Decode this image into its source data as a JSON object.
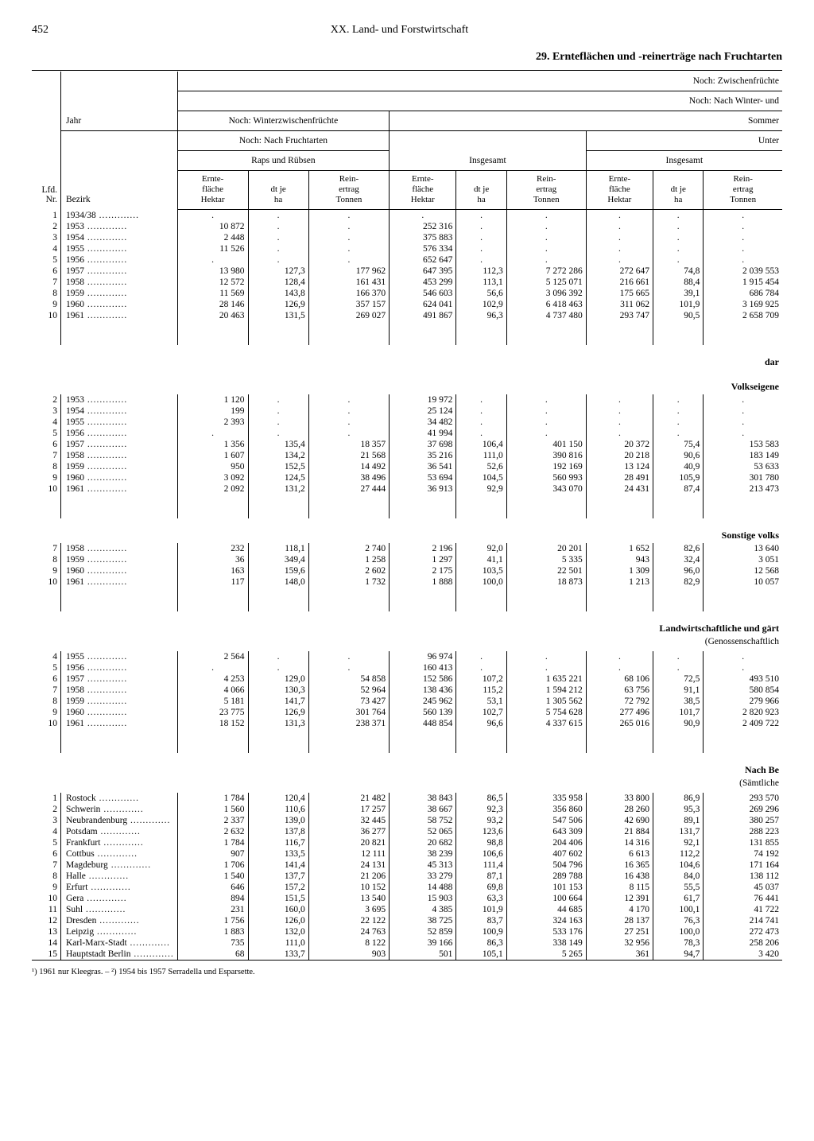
{
  "page_number": "452",
  "chapter": "XX. Land- und Forstwirtschaft",
  "table_title": "29. Ernteflächen und -reinerträge nach Fruchtarten",
  "right_labels": {
    "noch_zwischen": "Noch: Zwischenfrüchte",
    "noch_winter_und": "Noch: Nach Winter- und",
    "sommer": "Sommer",
    "unter": "Unter",
    "dar": "dar",
    "volkseigene": "Volkseigene",
    "sonstige": "Sonstige volks",
    "landw": "Landwirtschaftliche und gärt",
    "genoss": "(Genossenschaftlich",
    "nachbe": "Nach Be",
    "saemtliche": "(Sämtliche"
  },
  "col_heads": {
    "lfd": "Lfd.\nNr.",
    "jahr": "Jahr",
    "bezirk": "Bezirk",
    "noch_winterzw": "Noch: Winterzwischenfrüchte",
    "noch_frucht": "Noch: Nach Fruchtarten",
    "raps": "Raps und Rübsen",
    "insgesamt": "Insgesamt",
    "ernte": "Ernte-\nfläche\nHektar",
    "dtje": "dt je\nha",
    "rein": "Rein-\nertrag\nTonnen"
  },
  "sec1": [
    {
      "n": "1",
      "y": "1934/38",
      "c1": ".",
      "c2": ".",
      "c3": ".",
      "c4": ".",
      "c5": ".",
      "c6": ".",
      "c7": ".",
      "c8": ".",
      "c9": "."
    },
    {
      "n": "2",
      "y": "1953",
      "c1": "10 872",
      "c2": ".",
      "c3": ".",
      "c4": "252 316",
      "c5": ".",
      "c6": ".",
      "c7": ".",
      "c8": ".",
      "c9": "."
    },
    {
      "n": "3",
      "y": "1954",
      "c1": "2 448",
      "c2": ".",
      "c3": ".",
      "c4": "375 883",
      "c5": ".",
      "c6": ".",
      "c7": ".",
      "c8": ".",
      "c9": "."
    },
    {
      "n": "4",
      "y": "1955",
      "c1": "11 526",
      "c2": ".",
      "c3": ".",
      "c4": "576 334",
      "c5": ".",
      "c6": ".",
      "c7": ".",
      "c8": ".",
      "c9": "."
    },
    {
      "n": "5",
      "y": "1956",
      "c1": ".",
      "c2": ".",
      "c3": ".",
      "c4": "652 647",
      "c5": ".",
      "c6": ".",
      "c7": ".",
      "c8": ".",
      "c9": "."
    },
    {
      "n": "6",
      "y": "1957",
      "c1": "13 980",
      "c2": "127,3",
      "c3": "177 962",
      "c4": "647 395",
      "c5": "112,3",
      "c6": "7 272 286",
      "c7": "272 647",
      "c8": "74,8",
      "c9": "2 039 553"
    },
    {
      "n": "7",
      "y": "1958",
      "c1": "12 572",
      "c2": "128,4",
      "c3": "161 431",
      "c4": "453 299",
      "c5": "113,1",
      "c6": "5 125 071",
      "c7": "216 661",
      "c8": "88,4",
      "c9": "1 915 454"
    },
    {
      "n": "8",
      "y": "1959",
      "c1": "11 569",
      "c2": "143,8",
      "c3": "166 370",
      "c4": "546 603",
      "c5": "56,6",
      "c6": "3 096 392",
      "c7": "175 665",
      "c8": "39,1",
      "c9": "686 784"
    },
    {
      "n": "9",
      "y": "1960",
      "c1": "28 146",
      "c2": "126,9",
      "c3": "357 157",
      "c4": "624 041",
      "c5": "102,9",
      "c6": "6 418 463",
      "c7": "311 062",
      "c8": "101,9",
      "c9": "3 169 925"
    },
    {
      "n": "10",
      "y": "1961",
      "c1": "20 463",
      "c2": "131,5",
      "c3": "269 027",
      "c4": "491 867",
      "c5": "96,3",
      "c6": "4 737 480",
      "c7": "293 747",
      "c8": "90,5",
      "c9": "2 658 709"
    }
  ],
  "sec2": [
    {
      "n": "2",
      "y": "1953",
      "c1": "1 120",
      "c2": ".",
      "c3": ".",
      "c4": "19 972",
      "c5": ".",
      "c6": ".",
      "c7": ".",
      "c8": ".",
      "c9": "."
    },
    {
      "n": "3",
      "y": "1954",
      "c1": "199",
      "c2": ".",
      "c3": ".",
      "c4": "25 124",
      "c5": ".",
      "c6": ".",
      "c7": ".",
      "c8": ".",
      "c9": "."
    },
    {
      "n": "4",
      "y": "1955",
      "c1": "2 393",
      "c2": ".",
      "c3": ".",
      "c4": "34 482",
      "c5": ".",
      "c6": ".",
      "c7": ".",
      "c8": ".",
      "c9": "."
    },
    {
      "n": "5",
      "y": "1956",
      "c1": ".",
      "c2": ".",
      "c3": ".",
      "c4": "41 994",
      "c5": ".",
      "c6": ".",
      "c7": ".",
      "c8": ".",
      "c9": "."
    },
    {
      "n": "6",
      "y": "1957",
      "c1": "1 356",
      "c2": "135,4",
      "c3": "18 357",
      "c4": "37 698",
      "c5": "106,4",
      "c6": "401 150",
      "c7": "20 372",
      "c8": "75,4",
      "c9": "153 583"
    },
    {
      "n": "7",
      "y": "1958",
      "c1": "1 607",
      "c2": "134,2",
      "c3": "21 568",
      "c4": "35 216",
      "c5": "111,0",
      "c6": "390 816",
      "c7": "20 218",
      "c8": "90,6",
      "c9": "183 149"
    },
    {
      "n": "8",
      "y": "1959",
      "c1": "950",
      "c2": "152,5",
      "c3": "14 492",
      "c4": "36 541",
      "c5": "52,6",
      "c6": "192 169",
      "c7": "13 124",
      "c8": "40,9",
      "c9": "53 633"
    },
    {
      "n": "9",
      "y": "1960",
      "c1": "3 092",
      "c2": "124,5",
      "c3": "38 496",
      "c4": "53 694",
      "c5": "104,5",
      "c6": "560 993",
      "c7": "28 491",
      "c8": "105,9",
      "c9": "301 780"
    },
    {
      "n": "10",
      "y": "1961",
      "c1": "2 092",
      "c2": "131,2",
      "c3": "27 444",
      "c4": "36 913",
      "c5": "92,9",
      "c6": "343 070",
      "c7": "24 431",
      "c8": "87,4",
      "c9": "213 473"
    }
  ],
  "sec3": [
    {
      "n": "7",
      "y": "1958",
      "c1": "232",
      "c2": "118,1",
      "c3": "2 740",
      "c4": "2 196",
      "c5": "92,0",
      "c6": "20 201",
      "c7": "1 652",
      "c8": "82,6",
      "c9": "13 640"
    },
    {
      "n": "8",
      "y": "1959",
      "c1": "36",
      "c2": "349,4",
      "c3": "1 258",
      "c4": "1 297",
      "c5": "41,1",
      "c6": "5 335",
      "c7": "943",
      "c8": "32,4",
      "c9": "3 051"
    },
    {
      "n": "9",
      "y": "1960",
      "c1": "163",
      "c2": "159,6",
      "c3": "2 602",
      "c4": "2 175",
      "c5": "103,5",
      "c6": "22 501",
      "c7": "1 309",
      "c8": "96,0",
      "c9": "12 568"
    },
    {
      "n": "10",
      "y": "1961",
      "c1": "117",
      "c2": "148,0",
      "c3": "1 732",
      "c4": "1 888",
      "c5": "100,0",
      "c6": "18 873",
      "c7": "1 213",
      "c8": "82,9",
      "c9": "10 057"
    }
  ],
  "sec4": [
    {
      "n": "4",
      "y": "1955",
      "c1": "2 564",
      "c2": ".",
      "c3": ".",
      "c4": "96 974",
      "c5": ".",
      "c6": ".",
      "c7": ".",
      "c8": ".",
      "c9": "."
    },
    {
      "n": "5",
      "y": "1956",
      "c1": ".",
      "c2": ".",
      "c3": ".",
      "c4": "160 413",
      "c5": ".",
      "c6": ".",
      "c7": ".",
      "c8": ".",
      "c9": "."
    },
    {
      "n": "6",
      "y": "1957",
      "c1": "4 253",
      "c2": "129,0",
      "c3": "54 858",
      "c4": "152 586",
      "c5": "107,2",
      "c6": "1 635 221",
      "c7": "68 106",
      "c8": "72,5",
      "c9": "493 510"
    },
    {
      "n": "7",
      "y": "1958",
      "c1": "4 066",
      "c2": "130,3",
      "c3": "52 964",
      "c4": "138 436",
      "c5": "115,2",
      "c6": "1 594 212",
      "c7": "63 756",
      "c8": "91,1",
      "c9": "580 854"
    },
    {
      "n": "8",
      "y": "1959",
      "c1": "5 181",
      "c2": "141,7",
      "c3": "73 427",
      "c4": "245 962",
      "c5": "53,1",
      "c6": "1 305 562",
      "c7": "72 792",
      "c8": "38,5",
      "c9": "279 966"
    },
    {
      "n": "9",
      "y": "1960",
      "c1": "23 775",
      "c2": "126,9",
      "c3": "301 764",
      "c4": "560 139",
      "c5": "102,7",
      "c6": "5 754 628",
      "c7": "277 496",
      "c8": "101,7",
      "c9": "2 820 923"
    },
    {
      "n": "10",
      "y": "1961",
      "c1": "18 152",
      "c2": "131,3",
      "c3": "238 371",
      "c4": "448 854",
      "c5": "96,6",
      "c6": "4 337 615",
      "c7": "265 016",
      "c8": "90,9",
      "c9": "2 409 722"
    }
  ],
  "sec5": [
    {
      "n": "1",
      "y": "Rostock",
      "c1": "1 784",
      "c2": "120,4",
      "c3": "21 482",
      "c4": "38 843",
      "c5": "86,5",
      "c6": "335 958",
      "c7": "33 800",
      "c8": "86,9",
      "c9": "293 570"
    },
    {
      "n": "2",
      "y": "Schwerin",
      "c1": "1 560",
      "c2": "110,6",
      "c3": "17 257",
      "c4": "38 667",
      "c5": "92,3",
      "c6": "356 860",
      "c7": "28 260",
      "c8": "95,3",
      "c9": "269 296"
    },
    {
      "n": "3",
      "y": "Neubrandenburg",
      "c1": "2 337",
      "c2": "139,0",
      "c3": "32 445",
      "c4": "58 752",
      "c5": "93,2",
      "c6": "547 506",
      "c7": "42 690",
      "c8": "89,1",
      "c9": "380 257"
    },
    {
      "n": "4",
      "y": "Potsdam",
      "c1": "2 632",
      "c2": "137,8",
      "c3": "36 277",
      "c4": "52 065",
      "c5": "123,6",
      "c6": "643 309",
      "c7": "21 884",
      "c8": "131,7",
      "c9": "288 223"
    },
    {
      "n": "5",
      "y": "Frankfurt",
      "c1": "1 784",
      "c2": "116,7",
      "c3": "20 821",
      "c4": "20 682",
      "c5": "98,8",
      "c6": "204 406",
      "c7": "14 316",
      "c8": "92,1",
      "c9": "131 855"
    },
    {
      "n": "6",
      "y": "Cottbus",
      "c1": "907",
      "c2": "133,5",
      "c3": "12 111",
      "c4": "38 239",
      "c5": "106,6",
      "c6": "407 602",
      "c7": "6 613",
      "c8": "112,2",
      "c9": "74 192"
    },
    {
      "n": "7",
      "y": "Magdeburg",
      "c1": "1 706",
      "c2": "141,4",
      "c3": "24 131",
      "c4": "45 313",
      "c5": "111,4",
      "c6": "504 796",
      "c7": "16 365",
      "c8": "104,6",
      "c9": "171 164"
    },
    {
      "n": "8",
      "y": "Halle",
      "c1": "1 540",
      "c2": "137,7",
      "c3": "21 206",
      "c4": "33 279",
      "c5": "87,1",
      "c6": "289 788",
      "c7": "16 438",
      "c8": "84,0",
      "c9": "138 112"
    },
    {
      "n": "9",
      "y": "Erfurt",
      "c1": "646",
      "c2": "157,2",
      "c3": "10 152",
      "c4": "14 488",
      "c5": "69,8",
      "c6": "101 153",
      "c7": "8 115",
      "c8": "55,5",
      "c9": "45 037"
    },
    {
      "n": "10",
      "y": "Gera",
      "c1": "894",
      "c2": "151,5",
      "c3": "13 540",
      "c4": "15 903",
      "c5": "63,3",
      "c6": "100 664",
      "c7": "12 391",
      "c8": "61,7",
      "c9": "76 441"
    },
    {
      "n": "11",
      "y": "Suhl",
      "c1": "231",
      "c2": "160,0",
      "c3": "3 695",
      "c4": "4 385",
      "c5": "101,9",
      "c6": "44 685",
      "c7": "4 170",
      "c8": "100,1",
      "c9": "41 722"
    },
    {
      "n": "12",
      "y": "Dresden",
      "c1": "1 756",
      "c2": "126,0",
      "c3": "22 122",
      "c4": "38 725",
      "c5": "83,7",
      "c6": "324 163",
      "c7": "28 137",
      "c8": "76,3",
      "c9": "214 741"
    },
    {
      "n": "13",
      "y": "Leipzig",
      "c1": "1 883",
      "c2": "132,0",
      "c3": "24 763",
      "c4": "52 859",
      "c5": "100,9",
      "c6": "533 176",
      "c7": "27 251",
      "c8": "100,0",
      "c9": "272 473"
    },
    {
      "n": "14",
      "y": "Karl-Marx-Stadt",
      "c1": "735",
      "c2": "111,0",
      "c3": "8 122",
      "c4": "39 166",
      "c5": "86,3",
      "c6": "338 149",
      "c7": "32 956",
      "c8": "78,3",
      "c9": "258 206"
    },
    {
      "n": "15",
      "y": "Hauptstadt Berlin",
      "c1": "68",
      "c2": "133,7",
      "c3": "903",
      "c4": "501",
      "c5": "105,1",
      "c6": "5 265",
      "c7": "361",
      "c8": "94,7",
      "c9": "3 420"
    }
  ],
  "footnote": "¹) 1961 nur Kleegras. – ²) 1954 bis 1957 Serradella und Esparsette."
}
